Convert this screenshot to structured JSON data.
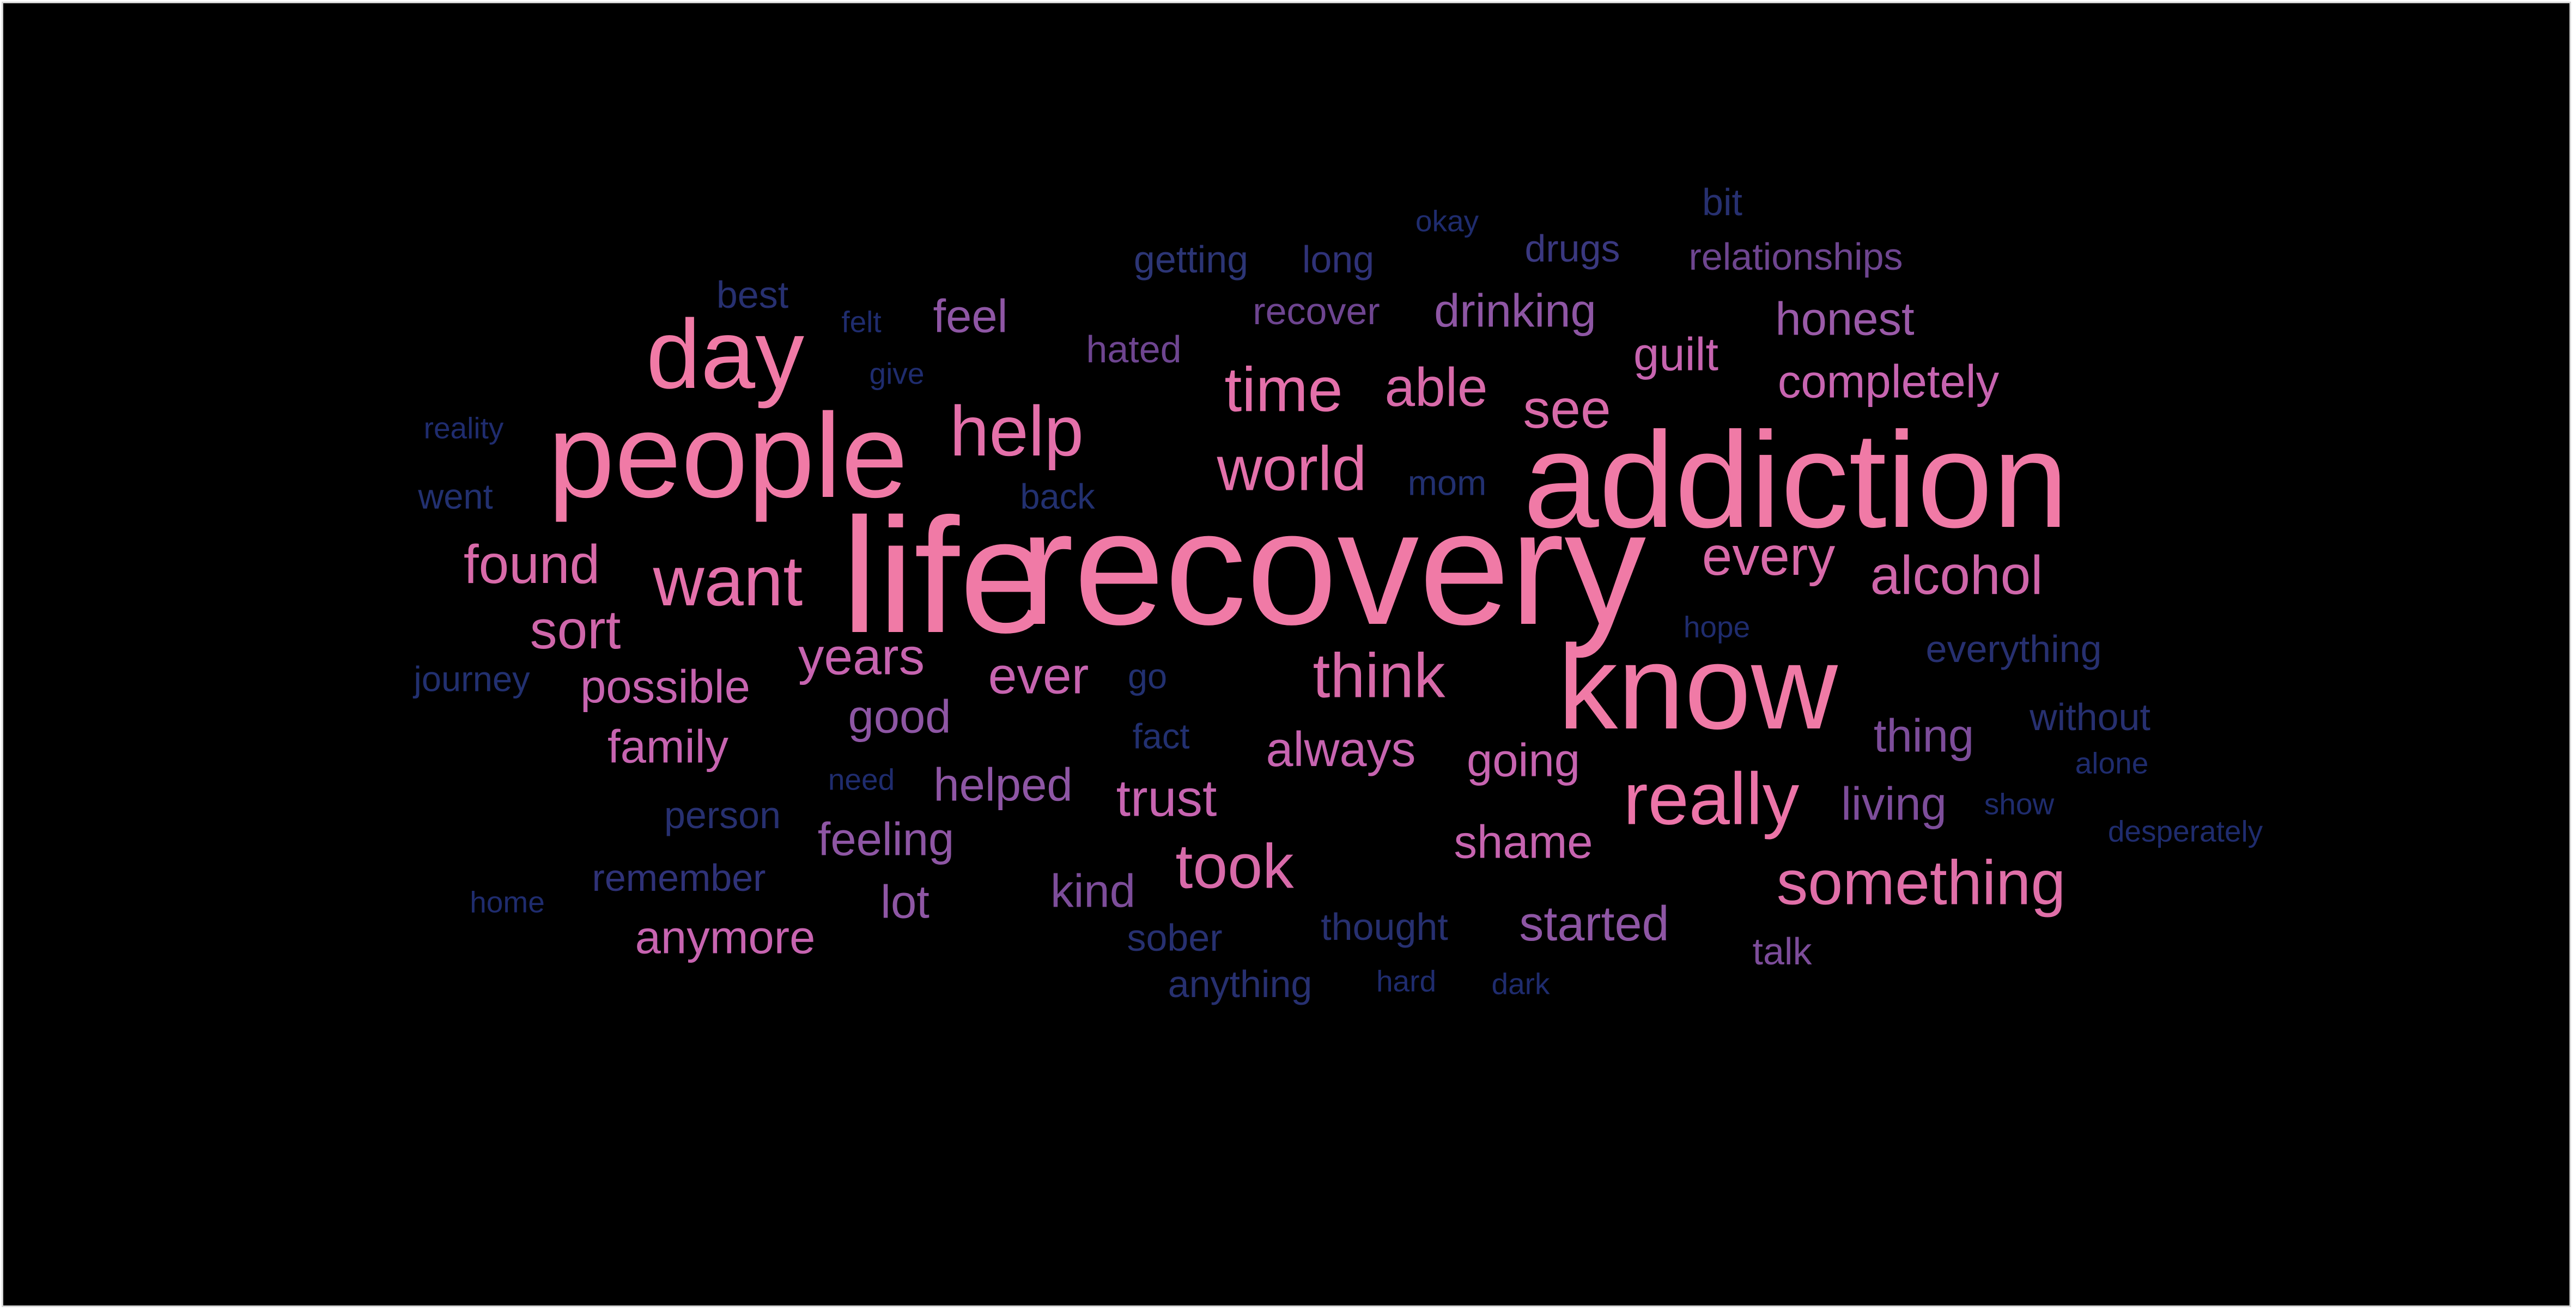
{
  "palette": {
    "background": "#000000",
    "frame_border": "#d8d8d8",
    "pink": "#f07aa6",
    "mauve": "#c764b0",
    "purple": "#7d4d9a",
    "violet": "#5a3b86",
    "navy": "#1f2c6e",
    "deep_navy": "#17214f"
  },
  "words": [
    {
      "text": "life",
      "color": "#f07aa6"
    },
    {
      "text": "recovery",
      "color": "#f07aa6"
    },
    {
      "text": "addiction",
      "color": "#f07aa6"
    },
    {
      "text": "know",
      "color": "#f07aa6"
    },
    {
      "text": "people",
      "color": "#f07aa6"
    },
    {
      "text": "day",
      "color": "#f07aa6"
    },
    {
      "text": "help",
      "color": "#e470aa"
    },
    {
      "text": "want",
      "color": "#e470aa"
    },
    {
      "text": "really",
      "color": "#ec74a8"
    },
    {
      "text": "something",
      "color": "#e06fa8"
    },
    {
      "text": "think",
      "color": "#d86aa9"
    },
    {
      "text": "took",
      "color": "#d86aa9"
    },
    {
      "text": "world",
      "color": "#e470aa"
    },
    {
      "text": "time",
      "color": "#e470aa"
    },
    {
      "text": "able",
      "color": "#d86aa9"
    },
    {
      "text": "see",
      "color": "#d86aa9"
    },
    {
      "text": "every",
      "color": "#d86aa9"
    },
    {
      "text": "alcohol",
      "color": "#cf66aa"
    },
    {
      "text": "found",
      "color": "#d86aa9"
    },
    {
      "text": "sort",
      "color": "#cf66aa"
    },
    {
      "text": "years",
      "color": "#c764b0"
    },
    {
      "text": "ever",
      "color": "#c764b0"
    },
    {
      "text": "trust",
      "color": "#c764b0"
    },
    {
      "text": "always",
      "color": "#c764b0"
    },
    {
      "text": "going",
      "color": "#c764b0"
    },
    {
      "text": "shame",
      "color": "#c764b0"
    },
    {
      "text": "possible",
      "color": "#c764b0"
    },
    {
      "text": "family",
      "color": "#c764b0"
    },
    {
      "text": "anymore",
      "color": "#c764b0"
    },
    {
      "text": "completely",
      "color": "#c764b0"
    },
    {
      "text": "guilt",
      "color": "#c764b0"
    },
    {
      "text": "started",
      "color": "#8e56a4"
    },
    {
      "text": "honest",
      "color": "#9a5aa8"
    },
    {
      "text": "drinking",
      "color": "#8e56a4"
    },
    {
      "text": "feel",
      "color": "#8e56a4"
    },
    {
      "text": "good",
      "color": "#8e56a4"
    },
    {
      "text": "helped",
      "color": "#8e56a4"
    },
    {
      "text": "feeling",
      "color": "#8e56a4"
    },
    {
      "text": "lot",
      "color": "#8e56a4"
    },
    {
      "text": "kind",
      "color": "#7d4d9a"
    },
    {
      "text": "thing",
      "color": "#7d4d9a"
    },
    {
      "text": "living",
      "color": "#7d4d9a"
    },
    {
      "text": "talk",
      "color": "#7d4d9a"
    },
    {
      "text": "hated",
      "color": "#6e4590"
    },
    {
      "text": "recover",
      "color": "#6e4590"
    },
    {
      "text": "relationships",
      "color": "#6e4590"
    },
    {
      "text": "drugs",
      "color": "#3a3880"
    },
    {
      "text": "long",
      "color": "#2f3278"
    },
    {
      "text": "getting",
      "color": "#2c3575"
    },
    {
      "text": "bit",
      "color": "#273070"
    },
    {
      "text": "best",
      "color": "#273070"
    },
    {
      "text": "remember",
      "color": "#2f3278"
    },
    {
      "text": "person",
      "color": "#273070"
    },
    {
      "text": "thought",
      "color": "#273070"
    },
    {
      "text": "sober",
      "color": "#273070"
    },
    {
      "text": "anything",
      "color": "#273070"
    },
    {
      "text": "everything",
      "color": "#273070"
    },
    {
      "text": "without",
      "color": "#273070"
    },
    {
      "text": "mom",
      "color": "#223070"
    },
    {
      "text": "back",
      "color": "#223070"
    },
    {
      "text": "went",
      "color": "#223070"
    },
    {
      "text": "journey",
      "color": "#223070"
    },
    {
      "text": "go",
      "color": "#223070"
    },
    {
      "text": "fact",
      "color": "#223070"
    },
    {
      "text": "felt",
      "color": "#1f2c6e"
    },
    {
      "text": "give",
      "color": "#1f2c6e"
    },
    {
      "text": "reality",
      "color": "#1f2c6e"
    },
    {
      "text": "okay",
      "color": "#1f2c6e"
    },
    {
      "text": "hope",
      "color": "#1f2c6e"
    },
    {
      "text": "need",
      "color": "#1f2c6e"
    },
    {
      "text": "home",
      "color": "#1f2c6e"
    },
    {
      "text": "hard",
      "color": "#1f2c6e"
    },
    {
      "text": "dark",
      "color": "#1f2c6e"
    },
    {
      "text": "alone",
      "color": "#1f2c6e"
    },
    {
      "text": "show",
      "color": "#1f2c6e"
    },
    {
      "text": "desperately",
      "color": "#1f2c6e"
    }
  ]
}
